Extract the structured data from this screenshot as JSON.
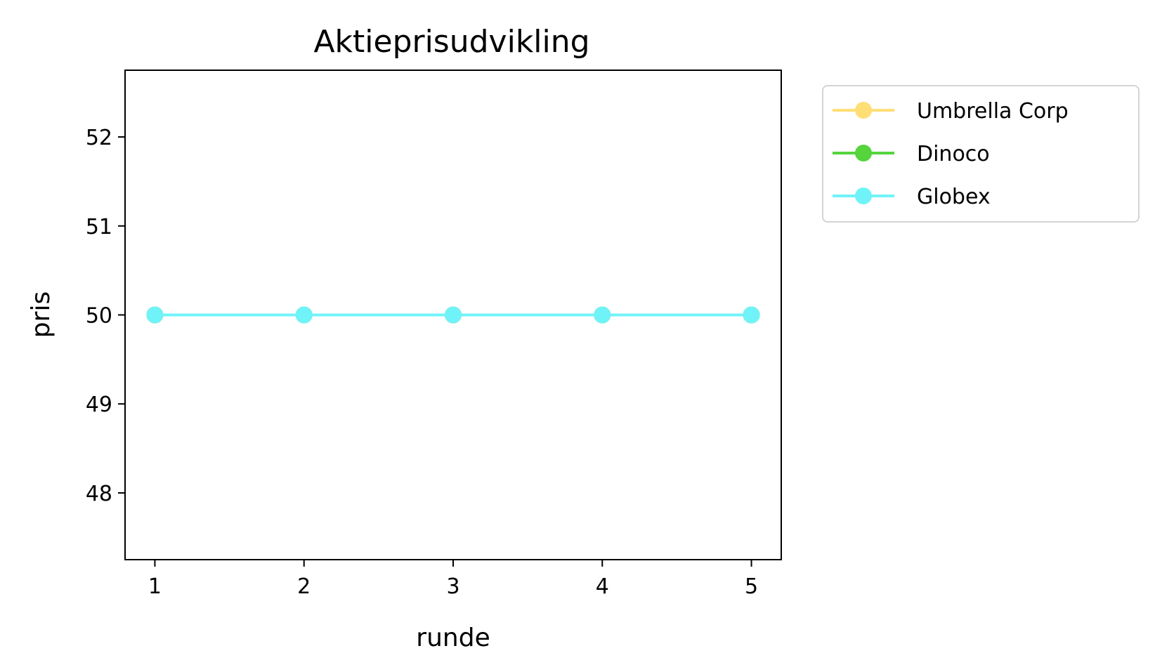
{
  "chart_data": {
    "type": "line",
    "title": "Aktieprisudvikling",
    "xlabel": "runde",
    "ylabel": "pris",
    "x": [
      1,
      2,
      3,
      4,
      5
    ],
    "xticks": [
      "1",
      "2",
      "3",
      "4",
      "5"
    ],
    "yticks": [
      "48",
      "49",
      "50",
      "51",
      "52"
    ],
    "xlim": [
      0.8,
      5.2
    ],
    "ylim": [
      47.25,
      52.75
    ],
    "grid": false,
    "legend_position": "outside-right-top",
    "series": [
      {
        "name": "Umbrella Corp",
        "values": [
          50,
          50,
          50,
          50,
          50
        ],
        "color": "#ffde75"
      },
      {
        "name": "Dinoco",
        "values": [
          50,
          50,
          50,
          50,
          50
        ],
        "color": "#55d43c"
      },
      {
        "name": "Globex",
        "values": [
          50,
          50,
          50,
          50,
          50
        ],
        "color": "#70f3f8"
      }
    ]
  }
}
